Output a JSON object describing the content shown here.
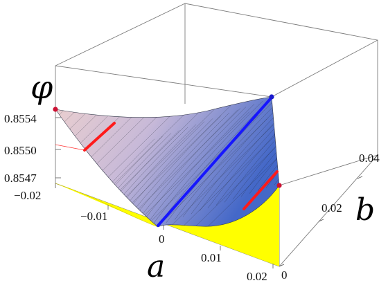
{
  "chart_data": {
    "type": "surface3d",
    "z_axis": {
      "label": "φ",
      "ticks": [
        {
          "value": 0.8554,
          "label": "0.8554"
        },
        {
          "value": 0.855,
          "label": "0.8550"
        },
        {
          "value": 0.8547,
          "label": "0.8547"
        }
      ],
      "range": [
        0.8547,
        0.8554
      ]
    },
    "x_axis": {
      "label": "a",
      "ticks": [
        {
          "value": -0.02,
          "label": "−0.02"
        },
        {
          "value": -0.01,
          "label": "−0.01"
        },
        {
          "value": 0,
          "label": "0"
        },
        {
          "value": 0.01,
          "label": "0.01"
        },
        {
          "value": 0.02,
          "label": "0.02"
        }
      ],
      "range": [
        -0.02,
        0.02
      ]
    },
    "y_axis": {
      "label": "b",
      "ticks": [
        {
          "value": 0,
          "label": "0"
        },
        {
          "value": 0.02,
          "label": "0.02"
        },
        {
          "value": 0.04,
          "label": "0.04"
        }
      ],
      "range": [
        0,
        0.05
      ]
    },
    "surface": {
      "domain": "triangle a ≥ −0.02, a ≤ 0.02, b ≤ 0.02 + ... (region bounded by projected base triangle)",
      "color_top": "#e8c6c6",
      "color_bottom": "#4a6fc8"
    },
    "base_projection_color": "#ffff00",
    "lines": [
      {
        "name": "blue",
        "color": "#1616ff"
      },
      {
        "name": "red-left",
        "color": "#ff1a1a"
      },
      {
        "name": "red-right",
        "color": "#ff1a1a"
      }
    ],
    "points": [
      {
        "color": "#cc1133"
      },
      {
        "color": "#cc1133"
      },
      {
        "color": "#1a1acc"
      }
    ],
    "grid": false,
    "box": true
  }
}
